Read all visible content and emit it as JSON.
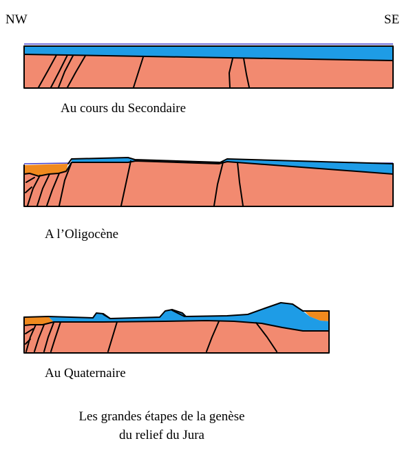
{
  "orientation": {
    "left": "NW",
    "right": "SE"
  },
  "stages": [
    {
      "caption": "Au cours du Secondaire"
    },
    {
      "caption": "A l’Oligocène"
    },
    {
      "caption": "Au Quaternaire"
    }
  ],
  "title_lines": [
    "Les grandes étapes de la genèse",
    "du relief du Jura"
  ],
  "colors": {
    "basement": "#F28A70",
    "limestone": "#1E9CE6",
    "sediment": "#F08A1E",
    "sea": "#4040D0",
    "ink": "#000000"
  }
}
